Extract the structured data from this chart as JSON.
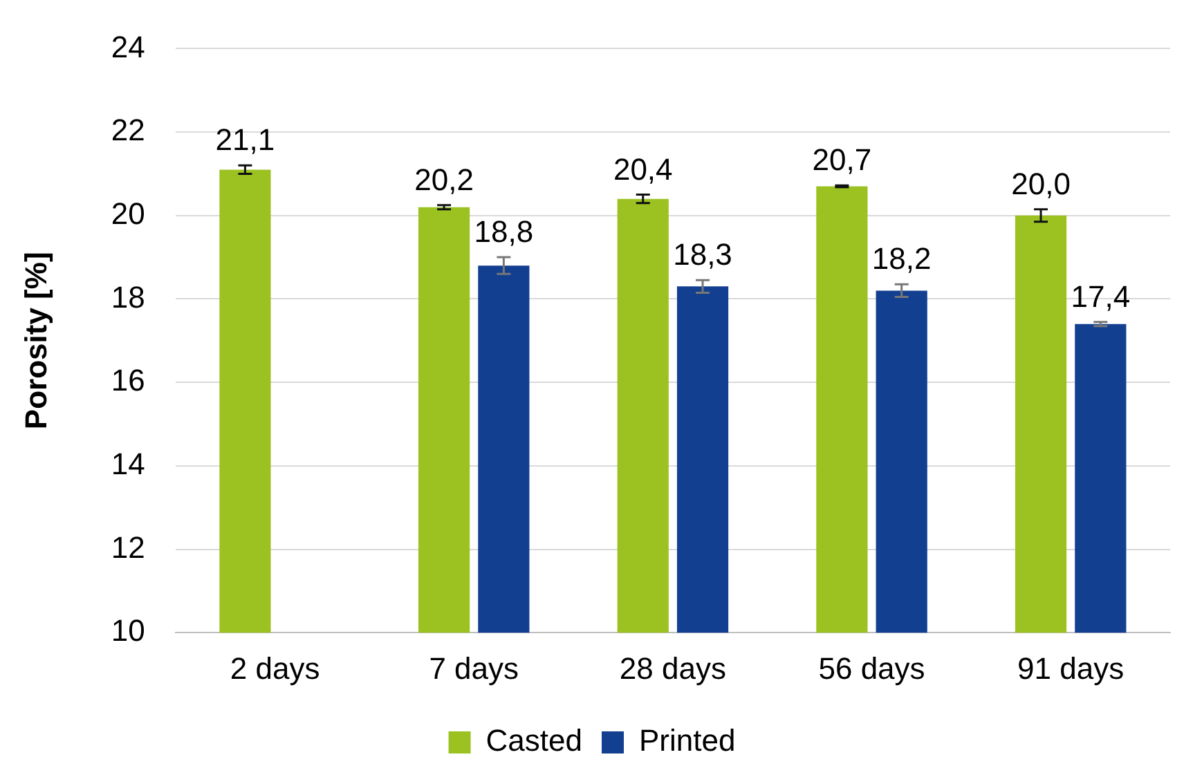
{
  "chart_data": {
    "type": "bar",
    "ylabel": "Porosity [%]",
    "categories": [
      "2 days",
      "7 days",
      "28 days",
      "56 days",
      "91 days"
    ],
    "series": [
      {
        "name": "Casted",
        "color": "#9bc221",
        "values": [
          21.1,
          20.2,
          20.4,
          20.7,
          20.0
        ],
        "errors": [
          0.1,
          0.05,
          0.1,
          0.02,
          0.15
        ],
        "value_labels": [
          "21,1",
          "20,2",
          "20,4",
          "20,7",
          "20,0"
        ]
      },
      {
        "name": "Printed",
        "color": "#133f91",
        "values": [
          null,
          18.8,
          18.3,
          18.2,
          17.4
        ],
        "errors": [
          null,
          0.2,
          0.15,
          0.15,
          0.05
        ],
        "value_labels": [
          null,
          "18,8",
          "18,3",
          "18,2",
          "17,4"
        ]
      }
    ],
    "ylim": [
      10,
      24
    ],
    "yticks": [
      10,
      12,
      14,
      16,
      18,
      20,
      22,
      24
    ],
    "grid": "y",
    "legend": "bottom"
  }
}
